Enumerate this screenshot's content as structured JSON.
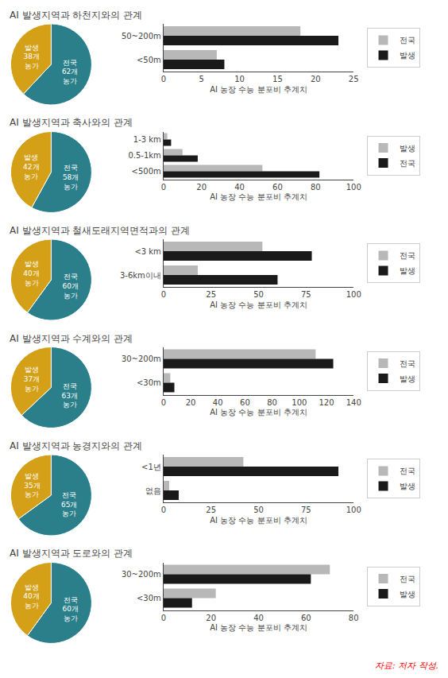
{
  "chart_data": [
    {
      "type": "bar",
      "orientation": "horizontal",
      "title": "AI 발생지역과 하천지와의 관계",
      "categories": [
        "50~200m",
        "<50m"
      ],
      "series": [
        {
          "name": "전국",
          "color": "#b8b8b8",
          "values": [
            18,
            7
          ]
        },
        {
          "name": "발생",
          "color": "#1a1a1a",
          "values": [
            23,
            8
          ]
        }
      ],
      "xlim": [
        0,
        25
      ],
      "xticks": [
        0,
        5,
        10,
        15,
        20,
        25
      ],
      "xlabel": "AI 농장 수능 분포비 추계치",
      "grid": false,
      "legend": "right"
    },
    {
      "type": "pie",
      "values": [
        62,
        38
      ],
      "colors": [
        "#2a7f8a",
        "#d4a017"
      ],
      "data_labels": true,
      "value_labels": [
        "전국\n62개\n농가",
        "발생\n38개\n농가"
      ]
    },
    {
      "type": "bar",
      "orientation": "horizontal",
      "title": "AI 발생지역과 축사와의 관계",
      "categories": [
        "1-3 km",
        "0.5-1km",
        "<500m"
      ],
      "series": [
        {
          "name": "발생",
          "color": "#b8b8b8",
          "values": [
            2,
            10,
            52
          ]
        },
        {
          "name": "전국",
          "color": "#1a1a1a",
          "values": [
            4,
            18,
            82
          ]
        }
      ],
      "xlim": [
        0,
        100
      ],
      "xticks": [
        0,
        20,
        40,
        60,
        80,
        100
      ],
      "xlabel": "AI 농장 수능 분포비 추계치",
      "grid": false,
      "legend": "right"
    },
    {
      "type": "pie",
      "values": [
        58,
        42
      ],
      "colors": [
        "#2a7f8a",
        "#d4a017"
      ],
      "data_labels": true,
      "value_labels": [
        "전국\n58개\n농가",
        "발생\n42개\n농가"
      ]
    },
    {
      "type": "bar",
      "orientation": "horizontal",
      "title": "AI 발생지역과 철새도래지역면적과의 관계",
      "categories": [
        "<3 km",
        "3-6km이내"
      ],
      "series": [
        {
          "name": "전국",
          "color": "#b8b8b8",
          "values": [
            52,
            18
          ]
        },
        {
          "name": "발생",
          "color": "#1a1a1a",
          "values": [
            78,
            60
          ]
        }
      ],
      "xlim": [
        0,
        100
      ],
      "xticks": [
        0,
        25,
        50,
        75,
        100
      ],
      "xlabel": "AI 농장 수능 분포비 추계치",
      "grid": false,
      "legend": "right"
    },
    {
      "type": "pie",
      "values": [
        60,
        40
      ],
      "colors": [
        "#2a7f8a",
        "#d4a017"
      ],
      "data_labels": true,
      "value_labels": [
        "전국\n60개\n농가",
        "발생\n40개\n농가"
      ]
    },
    {
      "type": "bar",
      "orientation": "horizontal",
      "title": "AI 발생지역과 수계와의 관계",
      "categories": [
        "30~200m",
        "<30m"
      ],
      "series": [
        {
          "name": "전국",
          "color": "#b8b8b8",
          "values": [
            112,
            5
          ]
        },
        {
          "name": "발생",
          "color": "#1a1a1a",
          "values": [
            125,
            8
          ]
        }
      ],
      "xlim": [
        0,
        140
      ],
      "xticks": [
        0,
        20,
        40,
        60,
        80,
        100,
        120,
        140
      ],
      "xlabel": "AI 농장 수능 분포비 추계치",
      "grid": false,
      "legend": "right"
    },
    {
      "type": "pie",
      "values": [
        63,
        37
      ],
      "colors": [
        "#2a7f8a",
        "#d4a017"
      ],
      "data_labels": true,
      "value_labels": [
        "전국\n63개\n농가",
        "발생\n37개\n농가"
      ]
    },
    {
      "type": "bar",
      "orientation": "horizontal",
      "title": "AI 발생지역과 농경지와의 관계",
      "categories": [
        "<1년",
        "없음"
      ],
      "series": [
        {
          "name": "전국",
          "color": "#b8b8b8",
          "values": [
            42,
            3
          ]
        },
        {
          "name": "발생",
          "color": "#1a1a1a",
          "values": [
            92,
            8
          ]
        }
      ],
      "xlim": [
        0,
        100
      ],
      "xticks": [
        0,
        25,
        50,
        75,
        100
      ],
      "xlabel": "AI 농장 수능 분포비 추계치",
      "grid": false,
      "legend": "right"
    },
    {
      "type": "pie",
      "values": [
        65,
        35
      ],
      "colors": [
        "#2a7f8a",
        "#d4a017"
      ],
      "data_labels": true,
      "value_labels": [
        "전국\n65개\n농가",
        "발생\n35개\n농가"
      ]
    },
    {
      "type": "bar",
      "orientation": "horizontal",
      "title": "AI 발생지역과 도로와의 관계",
      "categories": [
        "30~200m",
        "<30m"
      ],
      "series": [
        {
          "name": "전국",
          "color": "#b8b8b8",
          "values": [
            70,
            22
          ]
        },
        {
          "name": "발생",
          "color": "#1a1a1a",
          "values": [
            62,
            12
          ]
        }
      ],
      "xlim": [
        0,
        80
      ],
      "xticks": [
        0,
        20,
        40,
        60,
        80
      ],
      "xlabel": "AI 농장 수능 분포비 추계치",
      "grid": false,
      "legend": "right"
    },
    {
      "type": "pie",
      "values": [
        60,
        40
      ],
      "colors": [
        "#2a7f8a",
        "#d4a017"
      ],
      "data_labels": true,
      "value_labels": [
        "전국\n60개\n농가",
        "발생\n40개\n농가"
      ]
    }
  ],
  "annotations": [
    {
      "text": "자료: 저자 작성.",
      "color": "red"
    }
  ]
}
